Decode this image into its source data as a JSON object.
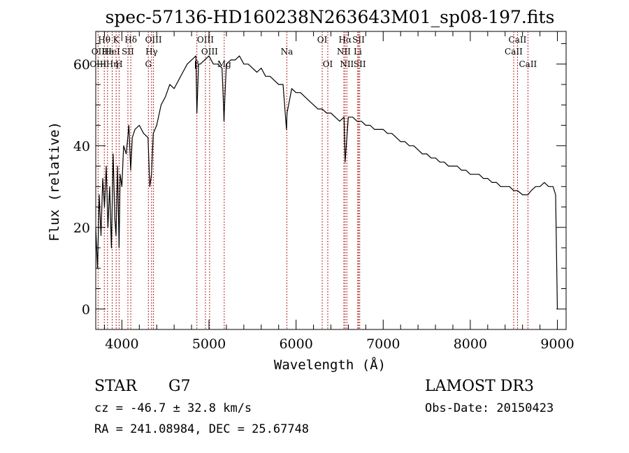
{
  "chart_data": {
    "type": "line",
    "title": "spec-57136-HD160238N263643M01_sp08-197.fits",
    "xlabel": "Wavelength (Å)",
    "ylabel": "Flux (relative)",
    "xlim": [
      3700,
      9100
    ],
    "ylim": [
      -5,
      68
    ],
    "x_ticks": [
      4000,
      5000,
      6000,
      7000,
      8000,
      9000
    ],
    "y_ticks": [
      0,
      20,
      40,
      60
    ],
    "x_tick_labels": [
      "4000",
      "5000",
      "6000",
      "7000",
      "8000",
      "9000"
    ],
    "y_tick_labels": [
      "0",
      "20",
      "40",
      "60"
    ],
    "series": [
      {
        "name": "spectrum",
        "x": [
          3700,
          3720,
          3740,
          3760,
          3780,
          3800,
          3820,
          3840,
          3860,
          3880,
          3900,
          3920,
          3933,
          3950,
          3968,
          3980,
          4000,
          4020,
          4050,
          4080,
          4101,
          4120,
          4150,
          4200,
          4250,
          4300,
          4320,
          4340,
          4360,
          4400,
          4450,
          4500,
          4550,
          4600,
          4650,
          4700,
          4750,
          4800,
          4850,
          4861,
          4880,
          4900,
          4950,
          5000,
          5050,
          5100,
          5150,
          5167,
          5172,
          5183,
          5200,
          5250,
          5300,
          5350,
          5400,
          5450,
          5500,
          5550,
          5600,
          5650,
          5700,
          5750,
          5800,
          5850,
          5890,
          5896,
          5950,
          6000,
          6050,
          6100,
          6150,
          6200,
          6250,
          6300,
          6350,
          6400,
          6450,
          6500,
          6550,
          6563,
          6600,
          6650,
          6700,
          6750,
          6800,
          6850,
          6900,
          6950,
          7000,
          7050,
          7100,
          7150,
          7200,
          7250,
          7300,
          7350,
          7400,
          7450,
          7500,
          7550,
          7600,
          7650,
          7700,
          7750,
          7800,
          7850,
          7900,
          7950,
          8000,
          8050,
          8100,
          8150,
          8200,
          8250,
          8300,
          8350,
          8400,
          8450,
          8498,
          8542,
          8600,
          8662,
          8700,
          8750,
          8800,
          8850,
          8900,
          8950,
          8980,
          9000
        ],
        "y": [
          20,
          10,
          28,
          18,
          32,
          25,
          35,
          20,
          30,
          15,
          38,
          22,
          18,
          35,
          15,
          33,
          30,
          40,
          38,
          45,
          34,
          42,
          44,
          45,
          43,
          42,
          30,
          33,
          43,
          45,
          50,
          52,
          55,
          54,
          56,
          58,
          60,
          61,
          62,
          48,
          60,
          60,
          61,
          62,
          60,
          60,
          59,
          50,
          46,
          52,
          60,
          61,
          61,
          62,
          60,
          60,
          59,
          58,
          59,
          57,
          57,
          56,
          55,
          55,
          44,
          48,
          54,
          53,
          53,
          52,
          51,
          50,
          49,
          49,
          48,
          48,
          47,
          46,
          47,
          36,
          47,
          47,
          46,
          46,
          45,
          45,
          44,
          44,
          44,
          43,
          43,
          42,
          41,
          41,
          40,
          40,
          39,
          38,
          38,
          37,
          37,
          36,
          36,
          35,
          35,
          35,
          34,
          34,
          33,
          33,
          33,
          32,
          32,
          31,
          31,
          30,
          30,
          30,
          29,
          29,
          28,
          28,
          29,
          30,
          30,
          31,
          30,
          30,
          28,
          0
        ]
      }
    ],
    "line_annotations": [
      {
        "label": "Hθ",
        "x": 3798,
        "row": 0
      },
      {
        "label": "OII",
        "x": 3727,
        "row": 1
      },
      {
        "label": "OIII",
        "x": 3727,
        "row": 2
      },
      {
        "label": "Hε",
        "x": 3835,
        "row": 1
      },
      {
        "label": "Hη",
        "x": 3889,
        "row": 2
      },
      {
        "label": "K",
        "x": 3934,
        "row": 0
      },
      {
        "label": "HeI",
        "x": 3889,
        "row": 1
      },
      {
        "label": "H",
        "x": 3968,
        "row": 2
      },
      {
        "label": "SII",
        "x": 4069,
        "row": 1
      },
      {
        "label": "Hδ",
        "x": 4102,
        "row": 0
      },
      {
        "label": "OIII",
        "x": 4363,
        "row": 0
      },
      {
        "label": "Hγ",
        "x": 4341,
        "row": 1
      },
      {
        "label": "G",
        "x": 4304,
        "row": 2
      },
      {
        "label": "OIII",
        "x": 4959,
        "row": 0
      },
      {
        "label": "OIII",
        "x": 5007,
        "row": 1
      },
      {
        "label": "β",
        "x": 4861,
        "row": 2
      },
      {
        "label": "Mg",
        "x": 5175,
        "row": 2
      },
      {
        "label": "Na",
        "x": 5894,
        "row": 1
      },
      {
        "label": "OI",
        "x": 6300,
        "row": 0
      },
      {
        "label": "OI",
        "x": 6364,
        "row": 2
      },
      {
        "label": "Hα",
        "x": 6563,
        "row": 0
      },
      {
        "label": "SII",
        "x": 6717,
        "row": 0
      },
      {
        "label": "NII",
        "x": 6548,
        "row": 1
      },
      {
        "label": "Li",
        "x": 6708,
        "row": 1
      },
      {
        "label": "NII",
        "x": 6583,
        "row": 2
      },
      {
        "label": "SII",
        "x": 6731,
        "row": 2
      },
      {
        "label": "CaII",
        "x": 8542,
        "row": 0
      },
      {
        "label": "CaII",
        "x": 8498,
        "row": 1
      },
      {
        "label": "CaII",
        "x": 8662,
        "row": 2
      }
    ],
    "line_markers": [
      3727,
      3798,
      3835,
      3889,
      3934,
      3968,
      4069,
      4102,
      4304,
      4341,
      4363,
      4861,
      4959,
      5007,
      5175,
      5894,
      6300,
      6364,
      6548,
      6563,
      6583,
      6708,
      6717,
      6731,
      8498,
      8542,
      8662
    ]
  },
  "info": {
    "object_class": "STAR",
    "subclass": "G7",
    "survey": "LAMOST DR3",
    "cz": "cz = -46.7 ± 32.8 km/s",
    "obs_date": "Obs-Date: 20150423",
    "coords": "RA = 241.08984, DEC =  25.67748"
  },
  "colors": {
    "line": "#000000",
    "marker": "#b22222",
    "background": "#ffffff"
  }
}
